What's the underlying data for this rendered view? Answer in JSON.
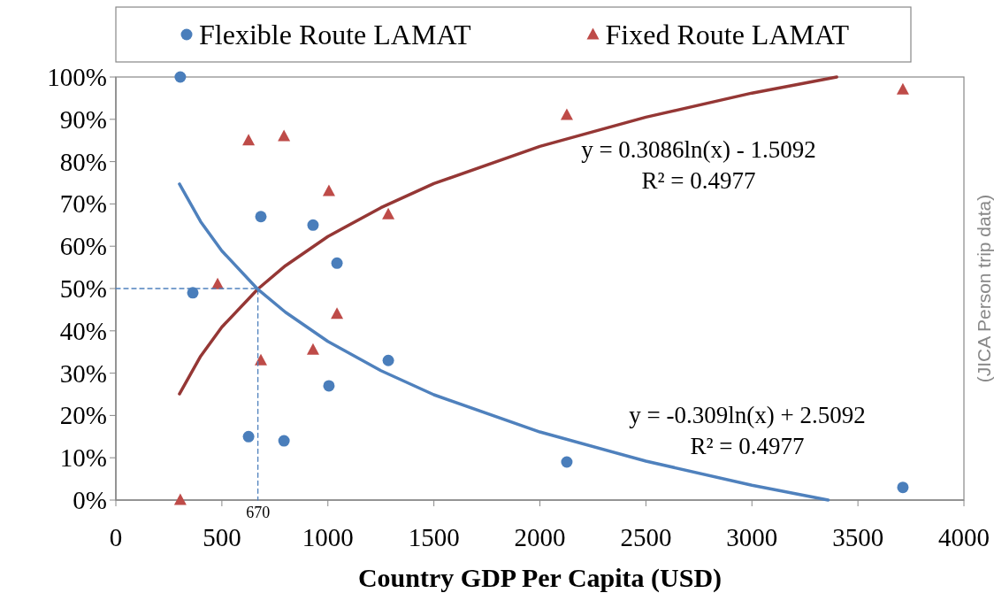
{
  "chart_data": {
    "type": "scatter",
    "xlabel": "Country GDP Per Capita (USD)",
    "xlim": [
      0,
      4000
    ],
    "xticks": [
      0,
      500,
      1000,
      1500,
      2000,
      2500,
      3000,
      3500,
      4000
    ],
    "ylim": [
      0,
      1
    ],
    "yticks": [
      {
        "value": 0,
        "label": "0%"
      },
      {
        "value": 0.1,
        "label": "10%"
      },
      {
        "value": 0.2,
        "label": "20%"
      },
      {
        "value": 0.3,
        "label": "30%"
      },
      {
        "value": 0.4,
        "label": "40%"
      },
      {
        "value": 0.5,
        "label": "50%"
      },
      {
        "value": 0.6,
        "label": "60%"
      },
      {
        "value": 0.7,
        "label": "70%"
      },
      {
        "value": 0.8,
        "label": "80%"
      },
      {
        "value": 0.9,
        "label": "90%"
      },
      {
        "value": 1,
        "label": "100%"
      }
    ],
    "grid": false,
    "legend": "top",
    "series": [
      {
        "name": "Flexible Route LAMAT",
        "color": "#4a7ebb",
        "marker": "circle",
        "x": [
          304,
          363,
          626,
          684,
          793,
          930,
          1005,
          1043,
          1285,
          2127,
          3712
        ],
        "values": [
          1.0,
          0.49,
          0.15,
          0.67,
          0.14,
          0.65,
          0.27,
          0.56,
          0.33,
          0.09,
          0.03
        ]
      },
      {
        "name": "Fixed Route LAMAT",
        "color": "#be4b48",
        "marker": "triangle",
        "x": [
          304,
          480,
          626,
          684,
          793,
          930,
          1005,
          1043,
          1285,
          2127,
          3712
        ],
        "values": [
          0.0,
          0.51,
          0.85,
          0.33,
          0.86,
          0.355,
          0.73,
          0.44,
          0.675,
          0.91,
          0.97
        ]
      },
      {
        "type": "line",
        "color": "#953735",
        "marker": "none",
        "line_style": "solid",
        "x": [
          300,
          400,
          500,
          670,
          800,
          1000,
          1250,
          1500,
          2000,
          2500,
          3000,
          3400
        ],
        "values": [
          0.251,
          0.34,
          0.409,
          0.499,
          0.554,
          0.623,
          0.691,
          0.748,
          0.836,
          0.905,
          0.962,
          1.0
        ]
      },
      {
        "type": "line",
        "color": "#4f81bd",
        "marker": "none",
        "line_style": "solid",
        "x": [
          300,
          400,
          500,
          670,
          800,
          1000,
          1250,
          1500,
          2000,
          2500,
          3000,
          3360
        ],
        "values": [
          0.747,
          0.658,
          0.589,
          0.498,
          0.444,
          0.375,
          0.306,
          0.249,
          0.161,
          0.092,
          0.035,
          0.0
        ]
      },
      {
        "type": "line",
        "color": "#4f81bd",
        "marker": "none",
        "line_style": "dashed",
        "x": [
          0,
          670,
          670
        ],
        "values": [
          0.5,
          0.5,
          0
        ]
      }
    ],
    "annotations": [
      "y = 0.3086ln(x) - 1.5092\nR² = 0.4977",
      "y = -0.309ln(x) + 2.5092\nR² = 0.4977",
      {
        "text": "670",
        "x": 670,
        "y": 0
      },
      "(JICA Person trip data)"
    ]
  }
}
